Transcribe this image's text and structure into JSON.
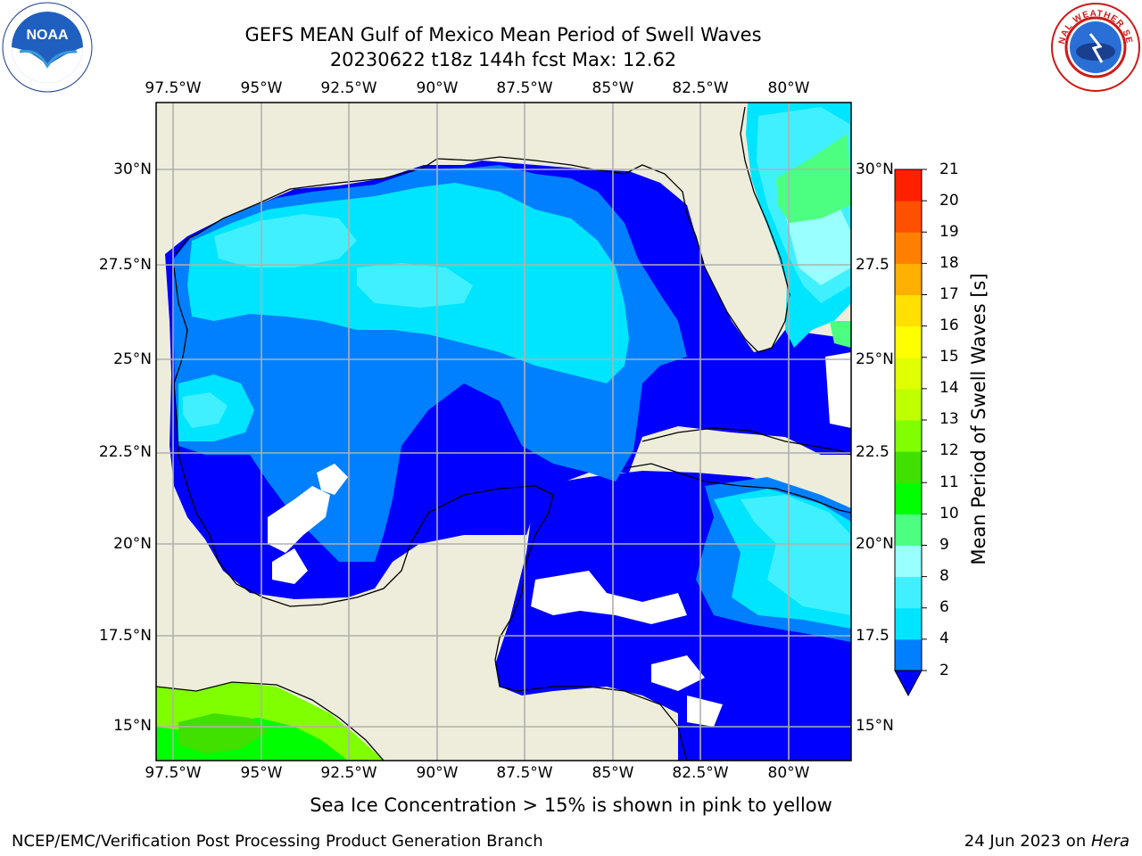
{
  "title": {
    "line1": "GEFS MEAN Gulf of Mexico Mean Period of Swell Waves",
    "line2": "20230622 t18z 144h fcst   Max: 12.62"
  },
  "logos": {
    "left": {
      "icon": "noaa-logo",
      "text": "NOAA"
    },
    "right": {
      "icon": "nws-logo",
      "text": "NATIONAL WEATHER SERVICE"
    }
  },
  "map": {
    "lon_labels": [
      "97.5°W",
      "95°W",
      "92.5°W",
      "90°W",
      "87.5°W",
      "85°W",
      "82.5°W",
      "80°W"
    ],
    "lat_labels_left": [
      "30°N",
      "27.5°N",
      "25°N",
      "22.5°N",
      "20°N",
      "17.5°N",
      "15°N"
    ],
    "lat_labels_right": [
      "30°N",
      "27.5",
      "25°N",
      "22.5",
      "20°N",
      "17.5",
      "15°N"
    ],
    "lon_range": [
      -98,
      -79
    ],
    "lat_range": [
      14,
      32
    ],
    "land_color": "#eeeddc",
    "grid_color": "#b0b0b0"
  },
  "colorbar": {
    "label": "Mean Period of Swell Waves [s]",
    "ticks": [
      "2",
      "4",
      "6",
      "8",
      "9",
      "10",
      "11",
      "12",
      "13",
      "14",
      "15",
      "16",
      "17",
      "18",
      "19",
      "20",
      "21"
    ],
    "colors": [
      "#0080ff",
      "#00e5ff",
      "#40f0ff",
      "#99ffff",
      "#4cff80",
      "#00ff00",
      "#40e000",
      "#80ff00",
      "#c0ff00",
      "#e0ff00",
      "#ffff00",
      "#ffe000",
      "#ffb000",
      "#ff8000",
      "#ff5000",
      "#ff2000"
    ],
    "under_color": "#0000ff"
  },
  "footer": {
    "ice_note": "Sea Ice Concentration > 15% is shown in pink to yellow",
    "credit": "NCEP/EMC/Verification Post Processing Product Generation Branch",
    "date": "24 Jun 2023 on ",
    "host": "Hera"
  }
}
